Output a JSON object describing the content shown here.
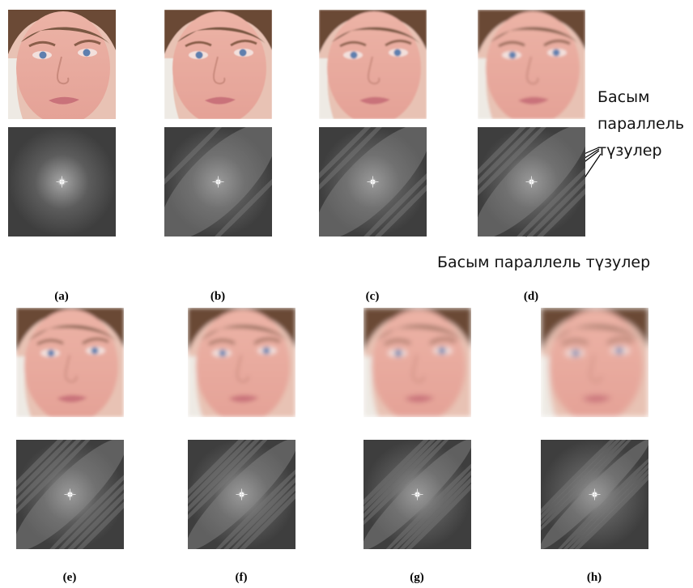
{
  "panels": [
    {
      "label": "(a)"
    },
    {
      "label": "(b)"
    },
    {
      "label": "(c)"
    },
    {
      "label": "(d)"
    },
    {
      "label": "(e)"
    },
    {
      "label": "(f)"
    },
    {
      "label": "(g)"
    },
    {
      "label": "(h)"
    }
  ],
  "annotations": {
    "side": [
      "Басым",
      "параллель",
      "түзулер"
    ],
    "bottom": "Басым параллель түзулер"
  }
}
